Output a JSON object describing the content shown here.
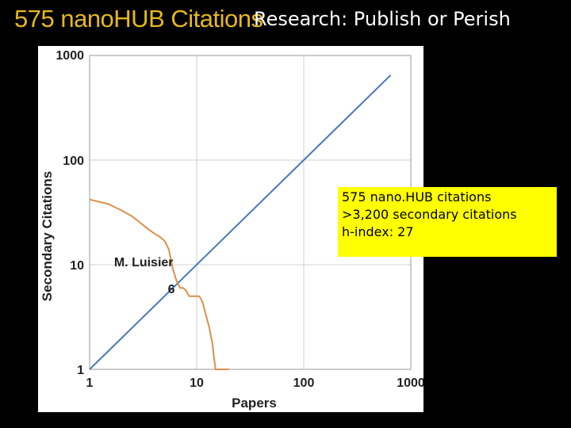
{
  "headline": "575 nanoHUB Citations",
  "slide_title": "Research: Publish or Perish",
  "callout": {
    "lines": [
      "575 nano.HUB citations",
      ">3,200 secondary citations",
      "h-index: 27"
    ]
  },
  "colors": {
    "headline": "#e6b820",
    "reference_line": "#4a78b8",
    "author_curve": "#d9904a",
    "callout_bg": "#ffff00",
    "grid": "#d0d0d0"
  },
  "chart_data": {
    "type": "line",
    "xlabel": "Papers",
    "ylabel": "Secondary Citations",
    "xscale": "log",
    "yscale": "log",
    "xlim": [
      1,
      1000
    ],
    "ylim": [
      1,
      1000
    ],
    "xticks": [
      1,
      10,
      100,
      1000
    ],
    "xtick_labels": [
      "1",
      "10",
      "100",
      "1000"
    ],
    "yticks": [
      1,
      10,
      100,
      1000
    ],
    "ytick_labels": [
      "1",
      "10",
      "100",
      "1000"
    ],
    "grid": true,
    "series": [
      {
        "name": "",
        "color": "#4a78b8",
        "x": [
          1,
          650
        ],
        "y": [
          1,
          650
        ]
      },
      {
        "name": "M. Luisier",
        "color": "#d9904a",
        "x": [
          1,
          1.5,
          2,
          2.5,
          3,
          3.5,
          4,
          4.5,
          5,
          5.5,
          6,
          6.5,
          7,
          7.5,
          8,
          8.5,
          9,
          10,
          10.5,
          11,
          11.5,
          12,
          13,
          14,
          14.5,
          15,
          16,
          18,
          20
        ],
        "y": [
          42,
          38,
          33,
          29,
          25,
          22,
          20,
          18.5,
          17,
          14,
          9,
          7,
          6,
          6,
          5.6,
          5,
          5,
          5,
          5,
          4.7,
          4.2,
          3.5,
          2.6,
          1.8,
          1.3,
          1,
          1,
          1,
          1
        ]
      }
    ],
    "annotations": [
      {
        "text": "M. Luisier",
        "x": 3.2,
        "y": 10.5
      },
      {
        "text": "6",
        "x": 5.8,
        "y": 5.8
      }
    ]
  }
}
